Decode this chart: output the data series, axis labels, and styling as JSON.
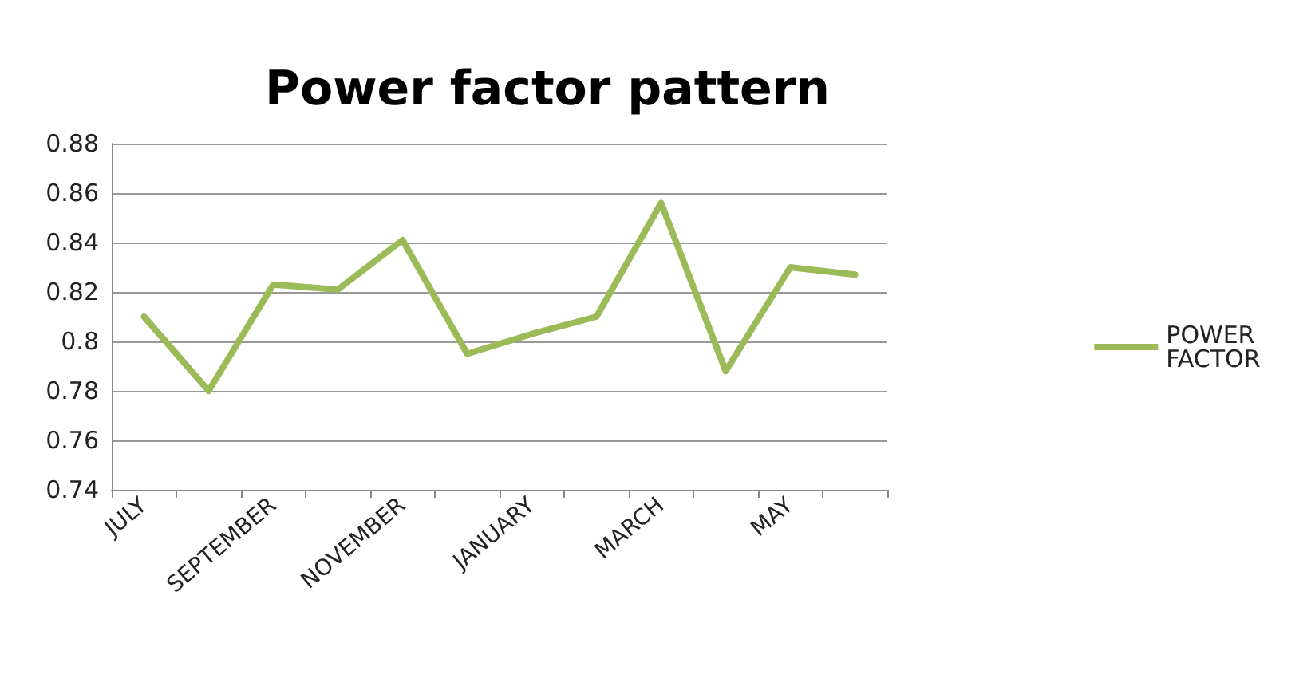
{
  "chart_data": {
    "type": "line",
    "title": "Power factor pattern",
    "categories": [
      "JULY",
      null,
      "SEPTEMBER",
      null,
      "NOVEMBER",
      null,
      "JANUARY",
      null,
      "MARCH",
      null,
      "MAY",
      null
    ],
    "series": [
      {
        "name": "POWER FACTOR",
        "color": "#9bbb59",
        "values": [
          0.81,
          0.78,
          0.823,
          0.821,
          0.841,
          0.795,
          0.803,
          0.81,
          0.856,
          0.788,
          0.83,
          0.827
        ]
      }
    ],
    "ylim": [
      0.74,
      0.88
    ],
    "yticks": [
      0.74,
      0.76,
      0.78,
      0.8,
      0.82,
      0.84,
      0.86,
      0.88
    ],
    "grid": "y",
    "legend": "right",
    "marker": "none"
  }
}
